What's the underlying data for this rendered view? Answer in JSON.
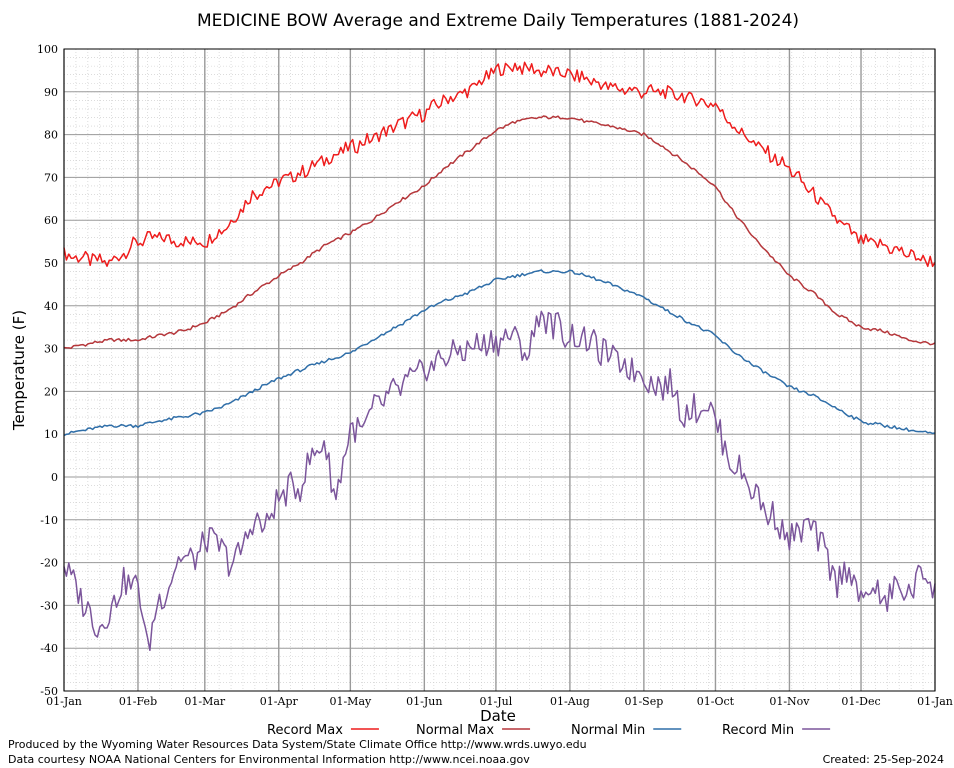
{
  "chart_data": {
    "type": "line",
    "title": "MEDICINE BOW Average and Extreme Daily Temperatures (1881-2024)",
    "xlabel": "Date",
    "ylabel": "Temperature (F)",
    "ylim": [
      -50,
      100
    ],
    "yticks": [
      "100",
      "90",
      "80",
      "70",
      "60",
      "50",
      "40",
      "30",
      "20",
      "10",
      "0",
      "-10",
      "-20",
      "-30",
      "-40",
      "-50"
    ],
    "xlim": [
      1,
      366
    ],
    "xticks": [
      {
        "day": 1,
        "label": "01-Jan"
      },
      {
        "day": 32,
        "label": "01-Feb"
      },
      {
        "day": 60,
        "label": "01-Mar"
      },
      {
        "day": 91,
        "label": "01-Apr"
      },
      {
        "day": 121,
        "label": "01-May"
      },
      {
        "day": 152,
        "label": "01-Jun"
      },
      {
        "day": 182,
        "label": "01-Jul"
      },
      {
        "day": 213,
        "label": "01-Aug"
      },
      {
        "day": 244,
        "label": "01-Sep"
      },
      {
        "day": 274,
        "label": "01-Oct"
      },
      {
        "day": 305,
        "label": "01-Nov"
      },
      {
        "day": 335,
        "label": "01-Dec"
      },
      {
        "day": 366,
        "label": "01-Jan"
      }
    ],
    "grid": true,
    "legend_position": "bottom",
    "series": [
      {
        "name": "Record Max",
        "color": "#ee1c1c",
        "x": [
          1,
          10,
          20,
          32,
          40,
          50,
          60,
          70,
          80,
          91,
          100,
          110,
          121,
          130,
          140,
          152,
          160,
          170,
          182,
          190,
          200,
          213,
          220,
          230,
          244,
          250,
          260,
          274,
          280,
          290,
          305,
          315,
          325,
          335,
          345,
          355,
          366
        ],
        "y": [
          52,
          51,
          50,
          55,
          56,
          55,
          55,
          59,
          66,
          69,
          71,
          74,
          77,
          79,
          82,
          85,
          88,
          90,
          95,
          96,
          95,
          94,
          93,
          91,
          90,
          90,
          89,
          87,
          83,
          78,
          72,
          66,
          60,
          55,
          54,
          52,
          50
        ]
      },
      {
        "name": "Normal Max",
        "color": "#b5373b",
        "x": [
          1,
          10,
          20,
          32,
          40,
          50,
          60,
          70,
          80,
          91,
          100,
          110,
          121,
          130,
          140,
          152,
          160,
          170,
          182,
          190,
          200,
          213,
          220,
          230,
          244,
          250,
          260,
          274,
          280,
          290,
          305,
          315,
          325,
          335,
          345,
          355,
          366
        ],
        "y": [
          30,
          31,
          32,
          32,
          33,
          34,
          36,
          39,
          43,
          47,
          50,
          54,
          57,
          60,
          64,
          68,
          72,
          76,
          81,
          83,
          84,
          84,
          83,
          82,
          80,
          78,
          74,
          68,
          63,
          56,
          47,
          43,
          38,
          35,
          34,
          32,
          31
        ]
      },
      {
        "name": "Normal Min",
        "color": "#2f6ea8",
        "x": [
          1,
          10,
          20,
          32,
          40,
          50,
          60,
          70,
          80,
          91,
          100,
          110,
          121,
          130,
          140,
          152,
          160,
          170,
          182,
          190,
          200,
          213,
          220,
          230,
          244,
          250,
          260,
          274,
          280,
          290,
          305,
          315,
          325,
          335,
          345,
          355,
          366
        ],
        "y": [
          10,
          11,
          12,
          12,
          13,
          14,
          15,
          17,
          20,
          23,
          25,
          27,
          29,
          32,
          35,
          39,
          41,
          43,
          46,
          47,
          48,
          48,
          47,
          45,
          42,
          40,
          37,
          33,
          30,
          26,
          21,
          19,
          16,
          13,
          12,
          11,
          10
        ]
      },
      {
        "name": "Record Min",
        "color": "#7b559b",
        "x": [
          1,
          5,
          10,
          15,
          20,
          25,
          32,
          36,
          40,
          45,
          50,
          55,
          60,
          65,
          70,
          75,
          80,
          85,
          91,
          95,
          100,
          105,
          110,
          115,
          121,
          125,
          130,
          135,
          140,
          145,
          152,
          160,
          170,
          182,
          190,
          195,
          200,
          205,
          213,
          220,
          230,
          240,
          244,
          250,
          255,
          260,
          265,
          270,
          274,
          278,
          282,
          286,
          290,
          295,
          300,
          305,
          310,
          315,
          320,
          325,
          330,
          335,
          340,
          345,
          350,
          355,
          360,
          366
        ],
        "y": [
          -20,
          -25,
          -30,
          -35,
          -32,
          -25,
          -25,
          -40,
          -30,
          -25,
          -18,
          -20,
          -15,
          -15,
          -20,
          -18,
          -10,
          -12,
          -5,
          -3,
          -2,
          5,
          8,
          -5,
          12,
          10,
          15,
          18,
          20,
          22,
          25,
          28,
          30,
          32,
          33,
          28,
          38,
          36,
          33,
          32,
          28,
          25,
          24,
          21,
          22,
          15,
          16,
          17,
          14,
          6,
          3,
          0,
          -3,
          -8,
          -10,
          -15,
          -12,
          -12,
          -18,
          -25,
          -20,
          -30,
          -25,
          -30,
          -25,
          -28,
          -22,
          -25
        ]
      }
    ]
  },
  "footer": {
    "produced_by": "Produced by the Wyoming Water Resources Data System/State Climate Office http://www.wrds.uwyo.edu",
    "courtesy": "Data courtesy NOAA National Centers for Environmental Information http://www.ncei.noaa.gov",
    "created": "Created:  25-Sep-2024"
  }
}
